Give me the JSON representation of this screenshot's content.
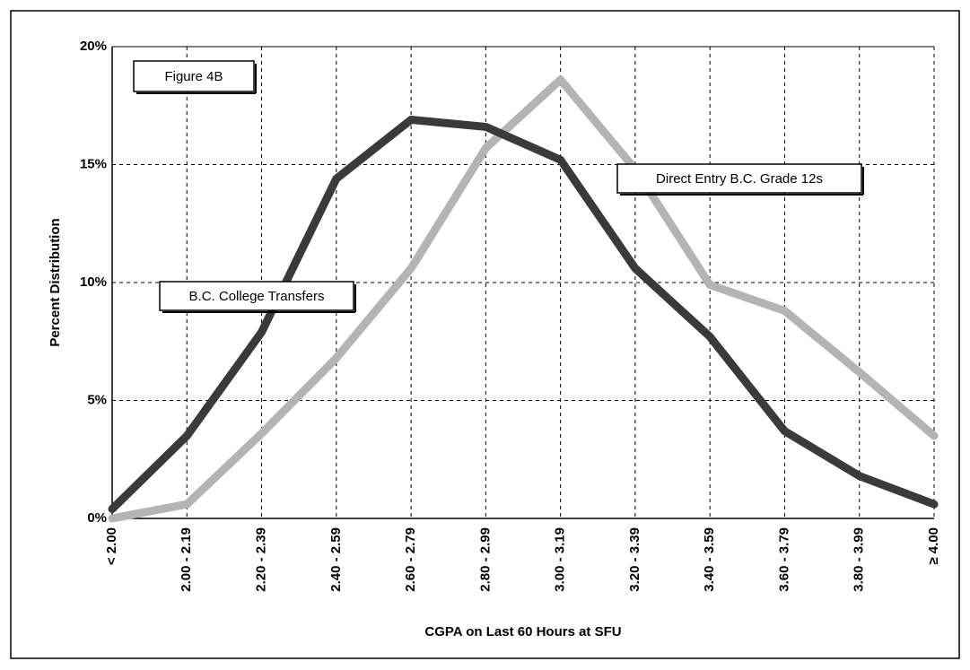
{
  "chart_data": {
    "type": "line",
    "title": "Figure 4B",
    "x_label": "CGPA on Last 60 Hours at SFU",
    "y_label": "Percent Distribution",
    "categories": [
      "< 2.00",
      "2.00 - 2.19",
      "2.20 - 2.39",
      "2.40 - 2.59",
      "2.60 - 2.79",
      "2.80 - 2.99",
      "3.00 - 3.19",
      "3.20 - 3.39",
      "3.40 - 3.59",
      "3.60 - 3.79",
      "3.80 - 3.99",
      "≥ 4.00"
    ],
    "series": [
      {
        "name": "B.C. College Transfers",
        "color": "#3a3a3a",
        "values": [
          0.4,
          3.5,
          7.9,
          14.4,
          16.9,
          16.6,
          15.2,
          10.6,
          7.7,
          3.7,
          1.8,
          0.6
        ]
      },
      {
        "name": "Direct Entry B.C. Grade 12s",
        "color": "#b4b4b4",
        "values": [
          0.0,
          0.6,
          3.6,
          6.8,
          10.6,
          15.7,
          18.6,
          14.8,
          9.9,
          8.8,
          6.2,
          3.5
        ]
      }
    ],
    "ylim": [
      0,
      20
    ],
    "yticks": [
      {
        "value": 0,
        "label": "0%"
      },
      {
        "value": 5,
        "label": "5%"
      },
      {
        "value": 10,
        "label": "10%"
      },
      {
        "value": 15,
        "label": "15%"
      },
      {
        "value": 20,
        "label": "20%"
      }
    ],
    "grid": true
  }
}
